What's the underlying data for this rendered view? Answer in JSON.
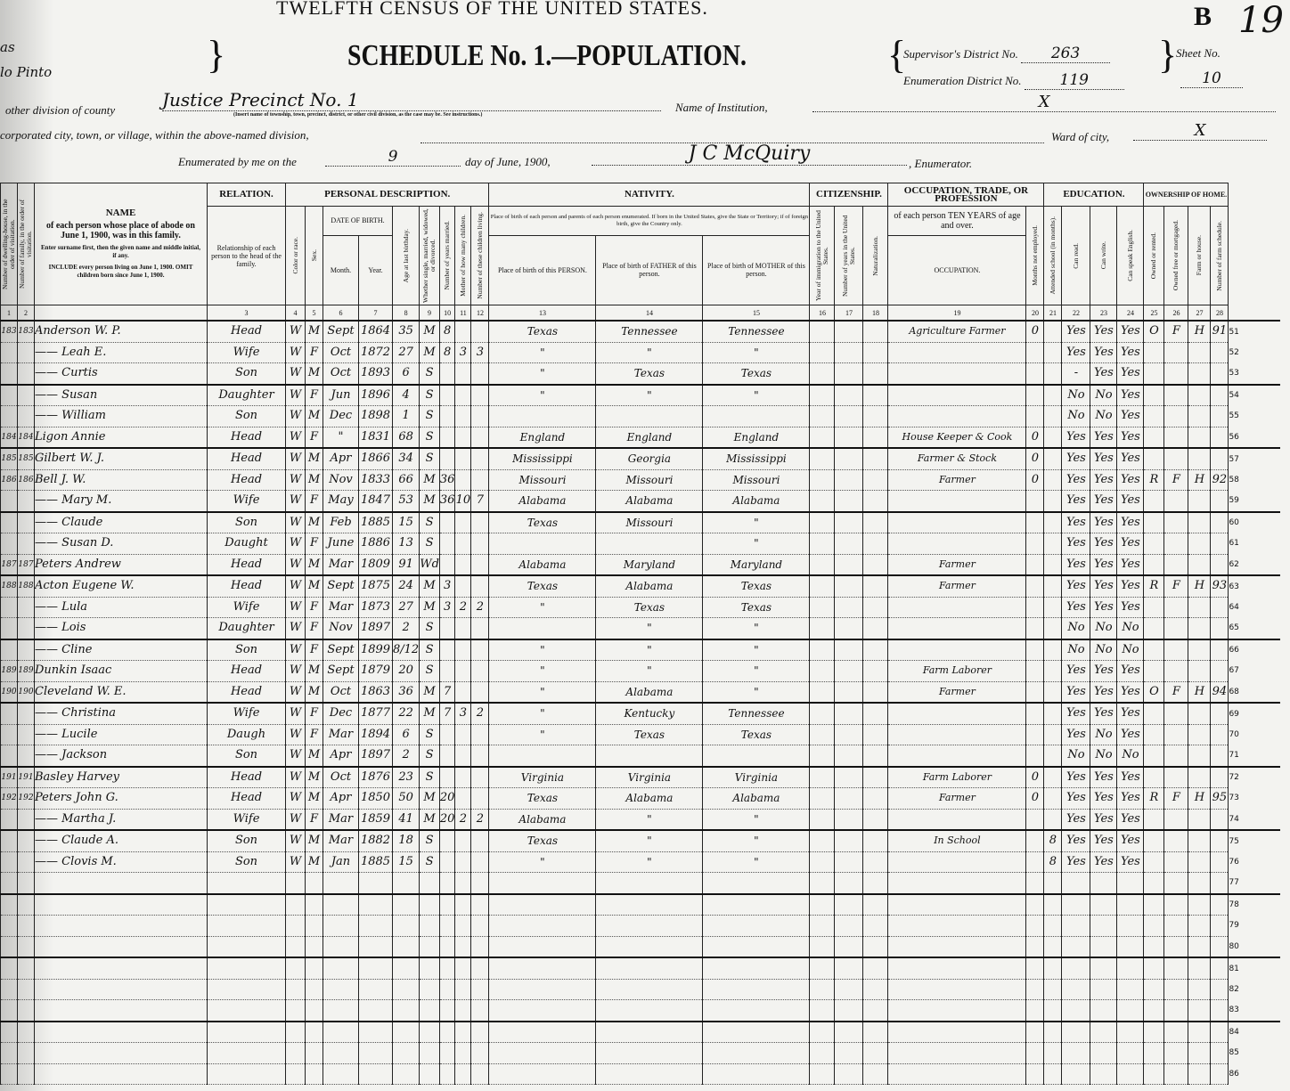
{
  "header": {
    "census_title": "TWELFTH CENSUS OF THE UNITED STATES.",
    "schedule_title": "SCHEDULE No. 1.—POPULATION.",
    "sheet_letter": "B",
    "sheet_handwritten": "19",
    "left_fragment_state": "as",
    "left_fragment_county": "lo Pinto",
    "supervisors_district_label": "Supervisor's District No.",
    "supervisors_district": "263",
    "enumeration_district_label": "Enumeration District No.",
    "enumeration_district": "119",
    "sheet_no_label": "Sheet No.",
    "sheet_no": "10",
    "division_label": "other division of county",
    "division_value": "Justice Precinct No. 1",
    "division_note": "(Insert name of township, town, precinct, district, or other civil division, as the case may be. See instructions.)",
    "institution_label": "Name of Institution,",
    "institution_value": "X",
    "city_label": "corporated city, town, or village, within the above-named division,",
    "ward_label": "Ward of city,",
    "ward_value": "X",
    "enumerated_label": "Enumerated by me on the",
    "enumerated_day": "9",
    "enumerated_month_label": "day of June, 1900,",
    "enumerator_name": "J C McQuiry",
    "enumerator_label": ", Enumerator."
  },
  "columns": {
    "groups": {
      "name": "NAME",
      "relation": "RELATION.",
      "personal": "PERSONAL DESCRIPTION.",
      "nativity": "NATIVITY.",
      "citizenship": "CITIZENSHIP.",
      "occupation": "OCCUPATION, TRADE, OR PROFESSION",
      "education": "EDUCATION.",
      "ownership": "OWNERSHIP OF HOME."
    },
    "dwelling": "Number of dwelling-house, in the order of visitation.",
    "family": "Number of family, in the order of visitation.",
    "name_desc": "of each person whose place of abode on June 1, 1900, was in this family.",
    "name_instr1": "Enter surname first, then the given name and middle initial, if any.",
    "name_instr2": "INCLUDE every person living on June 1, 1900. OMIT children born since June 1, 1900.",
    "relation_desc": "Relationship of each person to the head of the family.",
    "color": "Color or race.",
    "sex": "Sex.",
    "date_of_birth": "DATE OF BIRTH.",
    "month": "Month.",
    "year": "Year.",
    "age": "Age at last birthday.",
    "marital": "Whether single, married, widowed, or divorced.",
    "years_married": "Number of years married.",
    "mother_of": "Mother of how many children.",
    "children_living": "Number of these children living.",
    "nativity_note": "Place of birth of each person and parents of each person enumerated. If born in the United States, give the State or Territory; if of foreign birth, give the Country only.",
    "birth_person": "Place of birth of this PERSON.",
    "birth_father": "Place of birth of FATHER of this person.",
    "birth_mother": "Place of birth of MOTHER of this person.",
    "immigration": "Year of immigration to the United States.",
    "years_us": "Number of years in the United States.",
    "naturalization": "Naturalization.",
    "occupation_note": "of each person TEN YEARS of age and over.",
    "occupation": "OCCUPATION.",
    "months_unemployed": "Months not employed.",
    "school": "Attended school (in months).",
    "read": "Can read.",
    "write": "Can write.",
    "english": "Can speak English.",
    "owned": "Owned or rented.",
    "free": "Owned free or mortgaged.",
    "farm": "Farm or house.",
    "farm_schedule": "Number of farm schedule.",
    "numbers": [
      "1",
      "2",
      "3",
      "4",
      "5",
      "6",
      "7",
      "8",
      "9",
      "10",
      "11",
      "12",
      "13",
      "14",
      "15",
      "16",
      "17",
      "18",
      "19",
      "20",
      "21",
      "22",
      "23",
      "24",
      "25",
      "26",
      "27",
      "28"
    ]
  },
  "rows": [
    {
      "line": "51",
      "new_family": true,
      "cells": [
        "183",
        "183",
        "Anderson W. P.",
        "Head",
        "W",
        "M",
        "Sept",
        "1864",
        "35",
        "M",
        "8",
        "",
        "",
        "Texas",
        "Tennessee",
        "Tennessee",
        "",
        "",
        "",
        "Agriculture Farmer",
        "0",
        "",
        "Yes",
        "Yes",
        "Yes",
        "O",
        "F",
        "H",
        "91"
      ]
    },
    {
      "line": "52",
      "cells": [
        "",
        "",
        "—— Leah E.",
        "Wife",
        "W",
        "F",
        "Oct",
        "1872",
        "27",
        "M",
        "8",
        "3",
        "3",
        "\"",
        "\"",
        "\"",
        "",
        "",
        "",
        "",
        "",
        "",
        "Yes",
        "Yes",
        "Yes",
        "",
        "",
        "",
        ""
      ]
    },
    {
      "line": "53",
      "cells": [
        "",
        "",
        "—— Curtis",
        "Son",
        "W",
        "M",
        "Oct",
        "1893",
        "6",
        "S",
        "",
        "",
        "",
        "\"",
        "Texas",
        "Texas",
        "",
        "",
        "",
        "",
        "",
        "",
        "-",
        "Yes",
        "Yes",
        "",
        "",
        "",
        ""
      ]
    },
    {
      "line": "54",
      "new_family": true,
      "cells": [
        "",
        "",
        "—— Susan",
        "Daughter",
        "W",
        "F",
        "Jun",
        "1896",
        "4",
        "S",
        "",
        "",
        "",
        "\"",
        "\"",
        "\"",
        "",
        "",
        "",
        "",
        "",
        "",
        "No",
        "No",
        "Yes",
        "",
        "",
        "",
        ""
      ]
    },
    {
      "line": "55",
      "cells": [
        "",
        "",
        "—— William",
        "Son",
        "W",
        "M",
        "Dec",
        "1898",
        "1",
        "S",
        "",
        "",
        "",
        "",
        "",
        "",
        "",
        "",
        "",
        "",
        "",
        "",
        "No",
        "No",
        "Yes",
        "",
        "",
        "",
        ""
      ]
    },
    {
      "line": "56",
      "cells": [
        "184",
        "184",
        "Ligon Annie",
        "Head",
        "W",
        "F",
        "\"",
        "1831",
        "68",
        "S",
        "",
        "",
        "",
        "England",
        "England",
        "England",
        "",
        "",
        "",
        "House Keeper & Cook",
        "0",
        "",
        "Yes",
        "Yes",
        "Yes",
        "",
        "",
        "",
        ""
      ]
    },
    {
      "line": "57",
      "new_family": true,
      "cells": [
        "185",
        "185",
        "Gilbert W. J.",
        "Head",
        "W",
        "M",
        "Apr",
        "1866",
        "34",
        "S",
        "",
        "",
        "",
        "Mississippi",
        "Georgia",
        "Mississippi",
        "",
        "",
        "",
        "Farmer & Stock",
        "0",
        "",
        "Yes",
        "Yes",
        "Yes",
        "",
        "",
        "",
        ""
      ]
    },
    {
      "line": "58",
      "cells": [
        "186",
        "186",
        "Bell J. W.",
        "Head",
        "W",
        "M",
        "Nov",
        "1833",
        "66",
        "M",
        "36",
        "",
        "",
        "Missouri",
        "Missouri",
        "Missouri",
        "",
        "",
        "",
        "Farmer",
        "0",
        "",
        "Yes",
        "Yes",
        "Yes",
        "R",
        "F",
        "H",
        "92"
      ]
    },
    {
      "line": "59",
      "cells": [
        "",
        "",
        "—— Mary M.",
        "Wife",
        "W",
        "F",
        "May",
        "1847",
        "53",
        "M",
        "36",
        "10",
        "7",
        "Alabama",
        "Alabama",
        "Alabama",
        "",
        "",
        "",
        "",
        "",
        "",
        "Yes",
        "Yes",
        "Yes",
        "",
        "",
        "",
        ""
      ]
    },
    {
      "line": "60",
      "new_family": true,
      "cells": [
        "",
        "",
        "—— Claude",
        "Son",
        "W",
        "M",
        "Feb",
        "1885",
        "15",
        "S",
        "",
        "",
        "",
        "Texas",
        "Missouri",
        "\"",
        "",
        "",
        "",
        "",
        "",
        "",
        "Yes",
        "Yes",
        "Yes",
        "",
        "",
        "",
        ""
      ]
    },
    {
      "line": "61",
      "cells": [
        "",
        "",
        "—— Susan D.",
        "Daught",
        "W",
        "F",
        "June",
        "1886",
        "13",
        "S",
        "",
        "",
        "",
        "",
        "",
        "\"",
        "",
        "",
        "",
        "",
        "",
        "",
        "Yes",
        "Yes",
        "Yes",
        "",
        "",
        "",
        ""
      ]
    },
    {
      "line": "62",
      "cells": [
        "187",
        "187",
        "Peters Andrew",
        "Head",
        "W",
        "M",
        "Mar",
        "1809",
        "91",
        "Wd",
        "",
        "",
        "",
        "Alabama",
        "Maryland",
        "Maryland",
        "",
        "",
        "",
        "Farmer",
        "",
        "",
        "Yes",
        "Yes",
        "Yes",
        "",
        "",
        "",
        ""
      ]
    },
    {
      "line": "63",
      "new_family": true,
      "cells": [
        "188",
        "188",
        "Acton Eugene W.",
        "Head",
        "W",
        "M",
        "Sept",
        "1875",
        "24",
        "M",
        "3",
        "",
        "",
        "Texas",
        "Alabama",
        "Texas",
        "",
        "",
        "",
        "Farmer",
        "",
        "",
        "Yes",
        "Yes",
        "Yes",
        "R",
        "F",
        "H",
        "93"
      ]
    },
    {
      "line": "64",
      "cells": [
        "",
        "",
        "—— Lula",
        "Wife",
        "W",
        "F",
        "Mar",
        "1873",
        "27",
        "M",
        "3",
        "2",
        "2",
        "\"",
        "Texas",
        "Texas",
        "",
        "",
        "",
        "",
        "",
        "",
        "Yes",
        "Yes",
        "Yes",
        "",
        "",
        "",
        ""
      ]
    },
    {
      "line": "65",
      "cells": [
        "",
        "",
        "—— Lois",
        "Daughter",
        "W",
        "F",
        "Nov",
        "1897",
        "2",
        "S",
        "",
        "",
        "",
        "",
        "\"",
        "\"",
        "",
        "",
        "",
        "",
        "",
        "",
        "No",
        "No",
        "No",
        "",
        "",
        "",
        ""
      ]
    },
    {
      "line": "66",
      "new_family": true,
      "cells": [
        "",
        "",
        "—— Cline",
        "Son",
        "W",
        "F",
        "Sept",
        "1899",
        "8/12",
        "S",
        "",
        "",
        "",
        "\"",
        "\"",
        "\"",
        "",
        "",
        "",
        "",
        "",
        "",
        "No",
        "No",
        "No",
        "",
        "",
        "",
        ""
      ]
    },
    {
      "line": "67",
      "cells": [
        "189",
        "189",
        "Dunkin Isaac",
        "Head",
        "W",
        "M",
        "Sept",
        "1879",
        "20",
        "S",
        "",
        "",
        "",
        "\"",
        "\"",
        "\"",
        "",
        "",
        "",
        "Farm Laborer",
        "",
        "",
        "Yes",
        "Yes",
        "Yes",
        "",
        "",
        "",
        ""
      ]
    },
    {
      "line": "68",
      "cells": [
        "190",
        "190",
        "Cleveland W. E.",
        "Head",
        "W",
        "M",
        "Oct",
        "1863",
        "36",
        "M",
        "7",
        "",
        "",
        "\"",
        "Alabama",
        "\"",
        "",
        "",
        "",
        "Farmer",
        "",
        "",
        "Yes",
        "Yes",
        "Yes",
        "O",
        "F",
        "H",
        "94"
      ]
    },
    {
      "line": "69",
      "new_family": true,
      "cells": [
        "",
        "",
        "—— Christina",
        "Wife",
        "W",
        "F",
        "Dec",
        "1877",
        "22",
        "M",
        "7",
        "3",
        "2",
        "\"",
        "Kentucky",
        "Tennessee",
        "",
        "",
        "",
        "",
        "",
        "",
        "Yes",
        "Yes",
        "Yes",
        "",
        "",
        "",
        ""
      ]
    },
    {
      "line": "70",
      "cells": [
        "",
        "",
        "—— Lucile",
        "Daugh",
        "W",
        "F",
        "Mar",
        "1894",
        "6",
        "S",
        "",
        "",
        "",
        "\"",
        "Texas",
        "Texas",
        "",
        "",
        "",
        "",
        "",
        "",
        "Yes",
        "No",
        "Yes",
        "",
        "",
        "",
        ""
      ]
    },
    {
      "line": "71",
      "cells": [
        "",
        "",
        "—— Jackson",
        "Son",
        "W",
        "M",
        "Apr",
        "1897",
        "2",
        "S",
        "",
        "",
        "",
        "",
        "",
        "",
        "",
        "",
        "",
        "",
        "",
        "",
        "No",
        "No",
        "No",
        "",
        "",
        "",
        ""
      ]
    },
    {
      "line": "72",
      "new_family": true,
      "cells": [
        "191",
        "191",
        "Basley Harvey",
        "Head",
        "W",
        "M",
        "Oct",
        "1876",
        "23",
        "S",
        "",
        "",
        "",
        "Virginia",
        "Virginia",
        "Virginia",
        "",
        "",
        "",
        "Farm Laborer",
        "0",
        "",
        "Yes",
        "Yes",
        "Yes",
        "",
        "",
        "",
        ""
      ]
    },
    {
      "line": "73",
      "cells": [
        "192",
        "192",
        "Peters John G.",
        "Head",
        "W",
        "M",
        "Apr",
        "1850",
        "50",
        "M",
        "20",
        "",
        "",
        "Texas",
        "Alabama",
        "Alabama",
        "",
        "",
        "",
        "Farmer",
        "0",
        "",
        "Yes",
        "Yes",
        "Yes",
        "R",
        "F",
        "H",
        "95"
      ]
    },
    {
      "line": "74",
      "cells": [
        "",
        "",
        "—— Martha J.",
        "Wife",
        "W",
        "F",
        "Mar",
        "1859",
        "41",
        "M",
        "20",
        "2",
        "2",
        "Alabama",
        "\"",
        "\"",
        "",
        "",
        "",
        "",
        "",
        "",
        "Yes",
        "Yes",
        "Yes",
        "",
        "",
        "",
        ""
      ]
    },
    {
      "line": "75",
      "new_family": true,
      "cells": [
        "",
        "",
        "—— Claude A.",
        "Son",
        "W",
        "M",
        "Mar",
        "1882",
        "18",
        "S",
        "",
        "",
        "",
        "Texas",
        "\"",
        "\"",
        "",
        "",
        "",
        "In School",
        "",
        "8",
        "Yes",
        "Yes",
        "Yes",
        "",
        "",
        "",
        ""
      ]
    },
    {
      "line": "76",
      "cells": [
        "",
        "",
        "—— Clovis M.",
        "Son",
        "W",
        "M",
        "Jan",
        "1885",
        "15",
        "S",
        "",
        "",
        "",
        "\"",
        "\"",
        "\"",
        "",
        "",
        "",
        "",
        "",
        "8",
        "Yes",
        "Yes",
        "Yes",
        "",
        "",
        "",
        ""
      ]
    },
    {
      "line": "77",
      "cells": []
    },
    {
      "line": "78",
      "new_family": true,
      "cells": []
    },
    {
      "line": "79",
      "cells": []
    },
    {
      "line": "80",
      "cells": []
    },
    {
      "line": "81",
      "new_family": true,
      "cells": []
    },
    {
      "line": "82",
      "cells": []
    },
    {
      "line": "83",
      "cells": []
    },
    {
      "line": "84",
      "new_family": true,
      "cells": []
    },
    {
      "line": "85",
      "cells": []
    },
    {
      "line": "86",
      "cells": []
    }
  ]
}
